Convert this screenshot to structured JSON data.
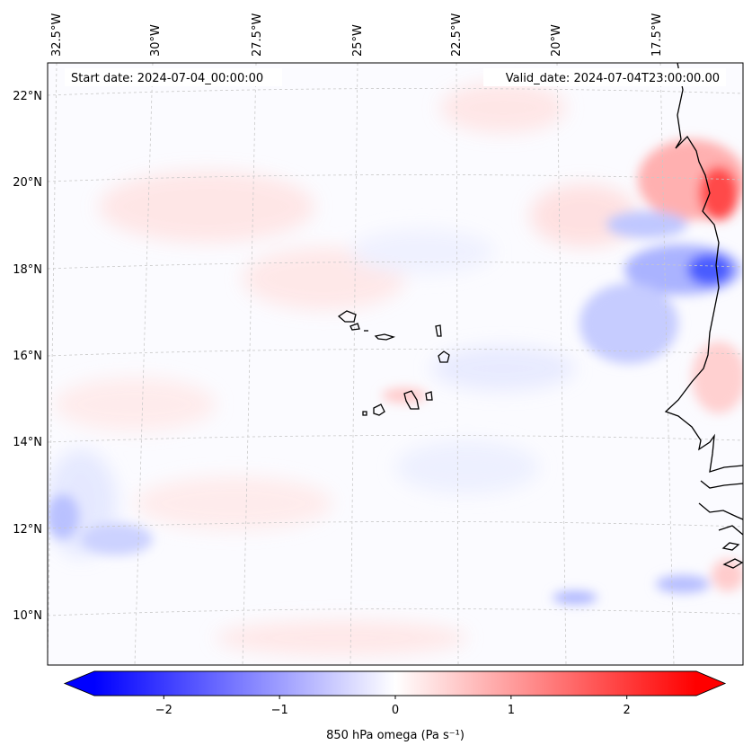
{
  "chart_data": {
    "type": "map",
    "variable_label": "850 hPa omega (Pa s⁻¹)",
    "start_date_text": "Start date: 2024-07-04_00:00:00",
    "valid_date_text": "Valid_date: 2024-07-04T23:00:00.00",
    "lon_ticks": [
      {
        "label": "32.5°W",
        "lon": -32.5
      },
      {
        "label": "30°W",
        "lon": -30
      },
      {
        "label": "27.5°W",
        "lon": -27.5
      },
      {
        "label": "25°W",
        "lon": -25
      },
      {
        "label": "22.5°W",
        "lon": -22.5
      },
      {
        "label": "20°W",
        "lon": -20
      },
      {
        "label": "17.5°W",
        "lon": -17.5
      }
    ],
    "lat_ticks": [
      {
        "label": "22°N",
        "lat": 22
      },
      {
        "label": "20°N",
        "lat": 20
      },
      {
        "label": "18°N",
        "lat": 18
      },
      {
        "label": "16°N",
        "lat": 16
      },
      {
        "label": "14°N",
        "lat": 14
      },
      {
        "label": "12°N",
        "lat": 12
      },
      {
        "label": "10°N",
        "lat": 10
      }
    ],
    "colorbar": {
      "vmin": -2.6,
      "vmax": 2.6,
      "cmap": "bwr",
      "extend": "both",
      "ticks": [
        {
          "label": "−2",
          "value": -2
        },
        {
          "label": "−1",
          "value": -1
        },
        {
          "label": "0",
          "value": 0
        },
        {
          "label": "1",
          "value": 1
        },
        {
          "label": "2",
          "value": 2
        }
      ]
    },
    "features": [
      "Cape Verde islands",
      "West African coastline (Mauritania, Senegal, Gambia, Guinea-Bissau)"
    ],
    "colors": {
      "negative": "#0000ff",
      "zero": "#ffffff",
      "positive": "#ff0000",
      "coastline": "#000000",
      "gridline": "#bbbbbb"
    }
  }
}
